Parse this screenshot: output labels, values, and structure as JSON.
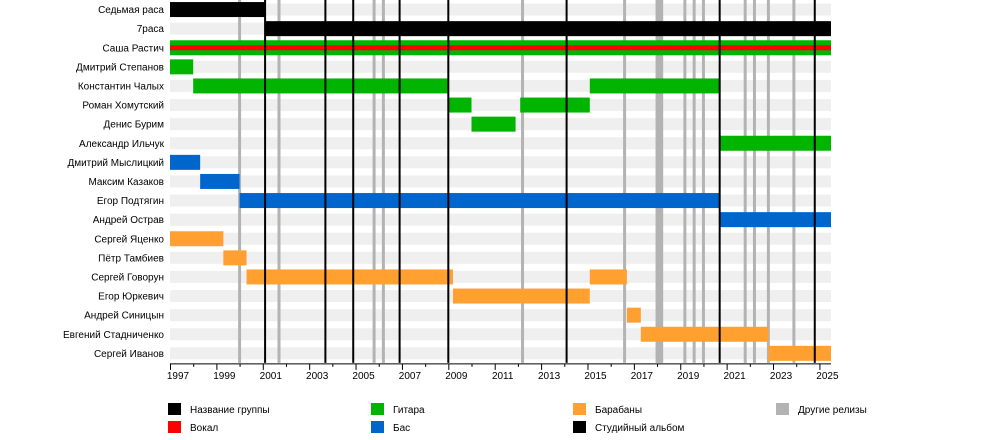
{
  "chart_data": {
    "type": "timeline",
    "members": [
      "Седьмая раса",
      "7раса",
      "Саша Растич",
      "Дмитрий Степанов",
      "Константин Чалых",
      "Роман Хомутский",
      "Денис Бурим",
      "Александр Ильчук",
      "Дмитрий Мыслицкий",
      "Максим Казаков",
      "Егор Подтягин",
      "Андрей Острав",
      "Сергей Яценко",
      "Пётр Тамбиев",
      "Сергей Говорун",
      "Егор Юркевич",
      "Андрей Синицын",
      "Евгений Стадниченко",
      "Сергей Иванов"
    ],
    "xlim": [
      1997,
      2025.5
    ],
    "x_ticks": [
      "1997",
      "1999",
      "2001",
      "2003",
      "2005",
      "2007",
      "2009",
      "2011",
      "2013",
      "2015",
      "2017",
      "2019",
      "2021",
      "2023",
      "2025"
    ],
    "roles": {
      "name": "#000000",
      "vocals": "#ff0000",
      "guitar": "#00b400",
      "bass": "#0066cc",
      "drums": "#ffa030",
      "other_release": "#b3b3b3",
      "studio_album": "#000000"
    },
    "bars": [
      {
        "member": 0,
        "role": "name",
        "start": 1997.0,
        "end": 2001.1
      },
      {
        "member": 1,
        "role": "name",
        "start": 2001.1,
        "end": 2025.5
      },
      {
        "member": 2,
        "role": "guitar",
        "start": 1997.0,
        "end": 2025.5
      },
      {
        "member": 2,
        "role": "vocals",
        "start": 1997.0,
        "end": 2025.5,
        "thin": true
      },
      {
        "member": 3,
        "role": "guitar",
        "start": 1997.0,
        "end": 1998.0
      },
      {
        "member": 4,
        "role": "guitar",
        "start": 1998.0,
        "end": 2009.0
      },
      {
        "member": 4,
        "role": "guitar",
        "start": 2015.1,
        "end": 2020.7
      },
      {
        "member": 5,
        "role": "guitar",
        "start": 2009.0,
        "end": 2010.0
      },
      {
        "member": 5,
        "role": "guitar",
        "start": 2012.1,
        "end": 2015.1
      },
      {
        "member": 6,
        "role": "guitar",
        "start": 2010.0,
        "end": 2011.9
      },
      {
        "member": 7,
        "role": "guitar",
        "start": 2020.7,
        "end": 2025.5
      },
      {
        "member": 8,
        "role": "bass",
        "start": 1997.0,
        "end": 1998.3
      },
      {
        "member": 9,
        "role": "bass",
        "start": 1998.3,
        "end": 2000.0
      },
      {
        "member": 10,
        "role": "bass",
        "start": 2000.0,
        "end": 2020.7
      },
      {
        "member": 11,
        "role": "bass",
        "start": 2020.7,
        "end": 2025.5
      },
      {
        "member": 12,
        "role": "drums",
        "start": 1997.0,
        "end": 1999.3
      },
      {
        "member": 13,
        "role": "drums",
        "start": 1999.3,
        "end": 2000.3
      },
      {
        "member": 14,
        "role": "drums",
        "start": 2000.3,
        "end": 2009.2
      },
      {
        "member": 14,
        "role": "drums",
        "start": 2015.1,
        "end": 2016.7
      },
      {
        "member": 15,
        "role": "drums",
        "start": 2009.2,
        "end": 2015.1
      },
      {
        "member": 16,
        "role": "drums",
        "start": 2016.7,
        "end": 2017.3
      },
      {
        "member": 17,
        "role": "drums",
        "start": 2017.3,
        "end": 2022.8
      },
      {
        "member": 18,
        "role": "drums",
        "start": 2022.8,
        "end": 2025.5
      }
    ],
    "studio_albums": [
      2001.1,
      2003.7,
      2004.9,
      2006.9,
      2009.0,
      2014.1,
      2020.7,
      2024.8
    ],
    "other_releases": [
      2000.0,
      2001.7,
      2005.8,
      2006.2,
      2012.2,
      2016.6,
      2018.0,
      2018.1,
      2018.2,
      2019.2,
      2019.6,
      2020.0,
      2021.8,
      2022.2,
      2022.8,
      2023.9
    ],
    "legend": [
      {
        "label": "Название группы",
        "role": "name"
      },
      {
        "label": "Вокал",
        "role": "vocals"
      },
      {
        "label": "Гитара",
        "role": "guitar"
      },
      {
        "label": "Бас",
        "role": "bass"
      },
      {
        "label": "Барабаны",
        "role": "drums"
      },
      {
        "label": "Студийный альбом",
        "role": "studio_album"
      },
      {
        "label": "Другие релизы",
        "role": "other_release"
      }
    ]
  }
}
